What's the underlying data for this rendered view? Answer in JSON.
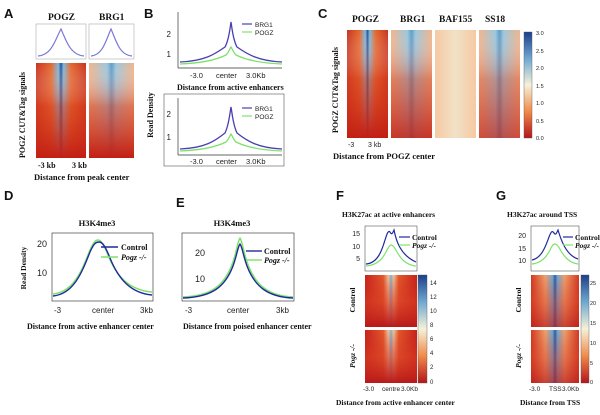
{
  "panels": {
    "A": {
      "letter": "A",
      "col_titles": [
        "POGZ",
        "BRG1"
      ],
      "ylabel": "POGZ  CUT&Tag signals",
      "xticks": [
        "-3 kb",
        "3 kb"
      ],
      "xlabel": "Distance from  peak center"
    },
    "B": {
      "letter": "B",
      "ylabel": "Read Density",
      "top": {
        "legend": [
          "BRG1",
          "POGZ"
        ],
        "yticks": [
          "1",
          "2"
        ],
        "xticks": [
          "-3.0",
          "center",
          "3.0Kb"
        ]
      },
      "xlabel": "Distance from active enhancers",
      "bottom": {
        "legend": [
          "BRG1",
          "POGZ"
        ],
        "yticks": [
          "1",
          "2"
        ],
        "xticks": [
          "-3.0",
          "center",
          "3.0Kb"
        ]
      }
    },
    "C": {
      "letter": "C",
      "col_titles": [
        "POGZ",
        "BRG1",
        "BAF155",
        "SS18"
      ],
      "ylabel": "POGZ  CUT&Tag signals",
      "xticks": [
        "-3",
        "3 kb"
      ],
      "xlabel": "Distance from POGZ center",
      "colorbar_ticks": [
        "3.0",
        "2.5",
        "2.0",
        "1.5",
        "1.0",
        "0.5",
        "0.0"
      ]
    },
    "D": {
      "letter": "D",
      "title": "H3K4me3",
      "ylabel": "Read Density",
      "yticks": [
        "10",
        "20"
      ],
      "xticks": [
        "-3",
        "center",
        "3kb"
      ],
      "legend": [
        "Control",
        "Pogz -/-"
      ],
      "xlabel": "Distance from active enhancer center"
    },
    "E": {
      "letter": "E",
      "title": "H3K4me3",
      "yticks": [
        "10",
        "20"
      ],
      "xticks": [
        "-3",
        "center",
        "3kb"
      ],
      "legend": [
        "Control",
        "Pogz -/-"
      ],
      "xlabel": "Distance from poised enhancer center"
    },
    "F": {
      "letter": "F",
      "title": "H3K27ac at active enhancers",
      "yticks": [
        "5",
        "10",
        "15"
      ],
      "legend": [
        "Control",
        "Pogz -/-"
      ],
      "row_labels": [
        "Control",
        "Pogz -/-"
      ],
      "xticks": [
        "-3.0",
        "centre",
        "3.0Kb"
      ],
      "colorbar_ticks": [
        "14",
        "12",
        "10",
        "8",
        "6",
        "4",
        "2",
        "0"
      ],
      "xlabel": "Distance from active enhancer center"
    },
    "G": {
      "letter": "G",
      "title": "H3K27ac around TSS",
      "yticks": [
        "10",
        "15",
        "20"
      ],
      "legend": [
        "Control",
        "Pogz -/-"
      ],
      "row_labels": [
        "Control",
        "Pogz -/-"
      ],
      "xticks": [
        "-3.0",
        "TSS",
        "3.0Kb"
      ],
      "colorbar_ticks": [
        "25",
        "20",
        "15",
        "10",
        "5",
        "0"
      ],
      "xlabel": "Distance from TSS"
    }
  },
  "colors": {
    "control": "#1f2a9c",
    "pogz_ko": "#7de26a",
    "brg1": "#4a3fb0",
    "pogz": "#7de26a",
    "heat_high": "#1d3f8a",
    "heat_low": "#c2261d"
  }
}
